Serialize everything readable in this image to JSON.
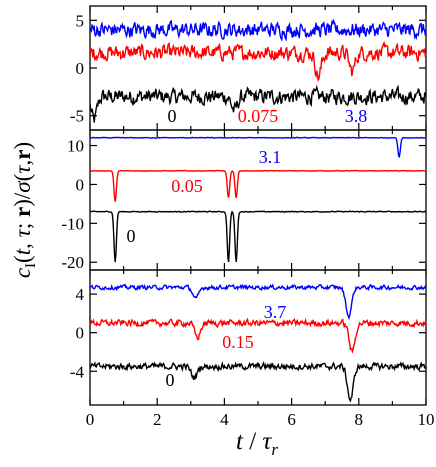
{
  "chart_data": {
    "type": "line",
    "shared_x": {
      "label_t": "t",
      "label_sep": " / ",
      "label_tau": "τ",
      "label_sub": "r",
      "range": [
        0,
        10
      ],
      "ticks": [
        0,
        2,
        4,
        6,
        8,
        10
      ]
    },
    "ylabel": {
      "c": "c",
      "sub": "I",
      "rest_a": "(",
      "t": "t",
      "comma1": ", ",
      "tau1": "τ",
      "semi": "; ",
      "r1": "r",
      "mid": ")/",
      "sigma": "σ",
      "paren2": "(",
      "tau2": "τ",
      "comma2": ",",
      "r2": "r",
      "close": ")"
    },
    "panels": [
      {
        "ylim": [
          -6.5,
          6.5
        ],
        "yticks": [
          -5,
          0,
          5
        ],
        "series": [
          {
            "label": "0",
            "color": "#000000",
            "mean": -3.0,
            "noise": 1.1,
            "dips": [
              {
                "t": 0.12,
                "depth": 2.5
              },
              {
                "t": 4.3,
                "depth": 1.5
              }
            ]
          },
          {
            "label": "0.075",
            "color": "#ff0000",
            "mean": 1.6,
            "noise": 1.1,
            "dips": [
              {
                "t": 6.8,
                "depth": 2.5
              },
              {
                "t": 7.8,
                "depth": 2.0
              }
            ]
          },
          {
            "label": "3.8",
            "color": "#0000ff",
            "mean": 4.0,
            "noise": 1.1,
            "dips": []
          }
        ]
      },
      {
        "ylim": [
          -22,
          14
        ],
        "yticks": [
          -20,
          -10,
          0,
          10
        ],
        "series": [
          {
            "label": "0",
            "color": "#000000",
            "mean": -7,
            "noise": 0.15,
            "dips": [
              {
                "t": 0.75,
                "depth": 13
              },
              {
                "t": 4.12,
                "depth": 13
              },
              {
                "t": 4.35,
                "depth": 13
              }
            ]
          },
          {
            "label": "0.05",
            "color": "#ff0000",
            "mean": 3.5,
            "noise": 0.1,
            "dips": [
              {
                "t": 0.75,
                "depth": 8
              },
              {
                "t": 4.12,
                "depth": 7
              },
              {
                "t": 4.35,
                "depth": 7
              }
            ]
          },
          {
            "label": "3.1",
            "color": "#0000ff",
            "mean": 12,
            "noise": 0.1,
            "dips": [
              {
                "t": 9.2,
                "depth": 5
              }
            ]
          }
        ]
      },
      {
        "ylim": [
          -7.5,
          6.5
        ],
        "yticks": [
          -4,
          0,
          4
        ],
        "series": [
          {
            "label": "0",
            "color": "#000000",
            "mean": -3.5,
            "noise": 0.45,
            "dips": [
              {
                "t": 3.1,
                "depth": 1.2
              },
              {
                "t": 7.75,
                "depth": 3.5
              }
            ]
          },
          {
            "label": "0.15",
            "color": "#ff0000",
            "mean": 1.0,
            "noise": 0.45,
            "dips": [
              {
                "t": 3.2,
                "depth": 1.5
              },
              {
                "t": 7.8,
                "depth": 3.0
              }
            ]
          },
          {
            "label": "3.7",
            "color": "#0000ff",
            "mean": 4.7,
            "noise": 0.3,
            "dips": [
              {
                "t": 3.15,
                "depth": 1.2
              },
              {
                "t": 7.7,
                "depth": 3.0
              }
            ]
          }
        ]
      }
    ]
  }
}
